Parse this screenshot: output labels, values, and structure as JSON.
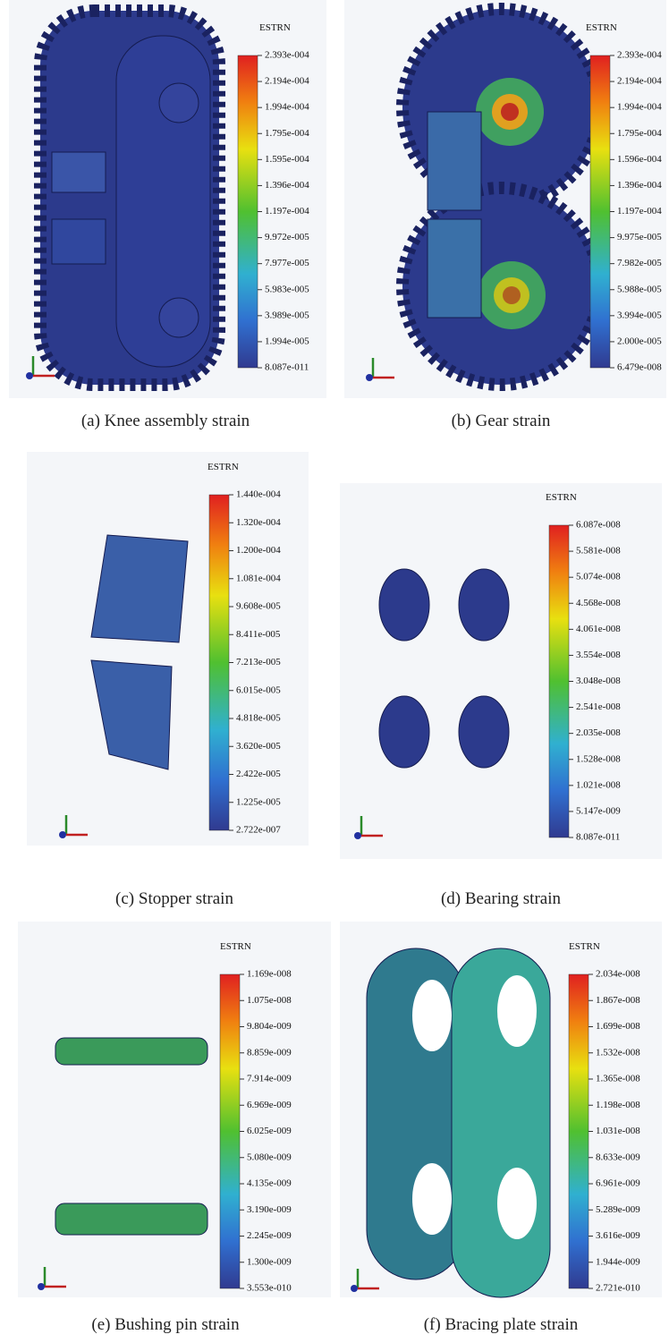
{
  "panels": [
    {
      "legend_title": "ESTRN",
      "ticks": [
        "2.393e-004",
        "2.194e-004",
        "1.994e-004",
        "1.795e-004",
        "1.595e-004",
        "1.396e-004",
        "1.197e-004",
        "9.972e-005",
        "7.977e-005",
        "5.983e-005",
        "3.989e-005",
        "1.994e-005",
        "8.087e-011"
      ],
      "caption": "(a) Knee assembly strain"
    },
    {
      "legend_title": "ESTRN",
      "ticks": [
        "2.393e-004",
        "2.194e-004",
        "1.994e-004",
        "1.795e-004",
        "1.596e-004",
        "1.396e-004",
        "1.197e-004",
        "9.975e-005",
        "7.982e-005",
        "5.988e-005",
        "3.994e-005",
        "2.000e-005",
        "6.479e-008"
      ],
      "caption": "(b) Gear strain"
    },
    {
      "legend_title": "ESTRN",
      "ticks": [
        "1.440e-004",
        "1.320e-004",
        "1.200e-004",
        "1.081e-004",
        "9.608e-005",
        "8.411e-005",
        "7.213e-005",
        "6.015e-005",
        "4.818e-005",
        "3.620e-005",
        "2.422e-005",
        "1.225e-005",
        "2.722e-007"
      ],
      "caption": "(c) Stopper strain"
    },
    {
      "legend_title": "ESTRN",
      "ticks": [
        "6.087e-008",
        "5.581e-008",
        "5.074e-008",
        "4.568e-008",
        "4.061e-008",
        "3.554e-008",
        "3.048e-008",
        "2.541e-008",
        "2.035e-008",
        "1.528e-008",
        "1.021e-008",
        "5.147e-009",
        "8.087e-011"
      ],
      "caption": "(d) Bearing strain"
    },
    {
      "legend_title": "ESTRN",
      "ticks": [
        "1.169e-008",
        "1.075e-008",
        "9.804e-009",
        "8.859e-009",
        "7.914e-009",
        "6.969e-009",
        "6.025e-009",
        "5.080e-009",
        "4.135e-009",
        "3.190e-009",
        "2.245e-009",
        "1.300e-009",
        "3.553e-010"
      ],
      "caption": "(e) Bushing pin strain"
    },
    {
      "legend_title": "ESTRN",
      "ticks": [
        "2.034e-008",
        "1.867e-008",
        "1.699e-008",
        "1.532e-008",
        "1.365e-008",
        "1.198e-008",
        "1.031e-008",
        "8.633e-009",
        "6.961e-009",
        "5.289e-009",
        "3.616e-009",
        "1.944e-009",
        "2.721e-010"
      ],
      "caption": "(f) Bracing plate strain"
    }
  ]
}
